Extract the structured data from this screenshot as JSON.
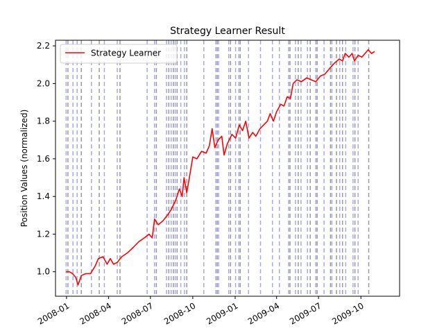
{
  "chart_data": {
    "type": "line",
    "title": "Strategy Learner Result",
    "xlabel": "",
    "ylabel": "Position Values (normalized)",
    "xlim": [
      "2007-12-08",
      "2009-12-24"
    ],
    "ylim": [
      0.87,
      2.23
    ],
    "grid": false,
    "legend_position": "upper-left",
    "x_ticks": [
      "2008-01",
      "2008-04",
      "2008-07",
      "2008-10",
      "2009-01",
      "2009-04",
      "2009-07",
      "2009-10"
    ],
    "x_tick_dates": [
      "2008-01-01",
      "2008-04-01",
      "2008-07-01",
      "2008-10-01",
      "2009-01-01",
      "2009-04-01",
      "2009-07-01",
      "2009-10-01"
    ],
    "y_ticks": [
      "1.0",
      "1.2",
      "1.4",
      "1.6",
      "1.8",
      "2.0",
      "2.2"
    ],
    "y_tick_values": [
      1.0,
      1.2,
      1.4,
      1.6,
      1.8,
      2.0,
      2.2
    ],
    "series": [
      {
        "name": "Strategy Learner",
        "color": "#ff0000",
        "points": [
          [
            "2007-12-31",
            1.0
          ],
          [
            "2008-01-07",
            1.0
          ],
          [
            "2008-01-14",
            0.99
          ],
          [
            "2008-01-21",
            0.97
          ],
          [
            "2008-01-26",
            0.93
          ],
          [
            "2008-02-02",
            0.98
          ],
          [
            "2008-02-12",
            0.99
          ],
          [
            "2008-02-22",
            0.99
          ],
          [
            "2008-03-03",
            1.03
          ],
          [
            "2008-03-10",
            1.07
          ],
          [
            "2008-03-20",
            1.08
          ],
          [
            "2008-03-29",
            1.04
          ],
          [
            "2008-04-05",
            1.07
          ],
          [
            "2008-04-12",
            1.04
          ],
          [
            "2008-04-20",
            1.05
          ],
          [
            "2008-04-30",
            1.08
          ],
          [
            "2008-05-12",
            1.1
          ],
          [
            "2008-05-25",
            1.13
          ],
          [
            "2008-06-06",
            1.16
          ],
          [
            "2008-06-18",
            1.18
          ],
          [
            "2008-06-28",
            1.2
          ],
          [
            "2008-07-05",
            1.18
          ],
          [
            "2008-07-10",
            1.28
          ],
          [
            "2008-07-18",
            1.25
          ],
          [
            "2008-07-28",
            1.27
          ],
          [
            "2008-08-07",
            1.3
          ],
          [
            "2008-08-15",
            1.33
          ],
          [
            "2008-08-25",
            1.38
          ],
          [
            "2008-09-02",
            1.44
          ],
          [
            "2008-09-08",
            1.4
          ],
          [
            "2008-09-12",
            1.5
          ],
          [
            "2008-09-18",
            1.42
          ],
          [
            "2008-09-25",
            1.52
          ],
          [
            "2008-10-01",
            1.61
          ],
          [
            "2008-10-10",
            1.6
          ],
          [
            "2008-10-20",
            1.64
          ],
          [
            "2008-10-30",
            1.63
          ],
          [
            "2008-11-06",
            1.67
          ],
          [
            "2008-11-12",
            1.76
          ],
          [
            "2008-11-18",
            1.66
          ],
          [
            "2008-11-25",
            1.7
          ],
          [
            "2008-12-03",
            1.72
          ],
          [
            "2008-12-08",
            1.62
          ],
          [
            "2008-12-15",
            1.68
          ],
          [
            "2008-12-25",
            1.73
          ],
          [
            "2009-01-02",
            1.71
          ],
          [
            "2009-01-10",
            1.78
          ],
          [
            "2009-01-17",
            1.75
          ],
          [
            "2009-01-24",
            1.8
          ],
          [
            "2009-01-31",
            1.71
          ],
          [
            "2009-02-08",
            1.74
          ],
          [
            "2009-02-15",
            1.72
          ],
          [
            "2009-02-24",
            1.76
          ],
          [
            "2009-03-04",
            1.78
          ],
          [
            "2009-03-12",
            1.8
          ],
          [
            "2009-03-18",
            1.84
          ],
          [
            "2009-03-25",
            1.8
          ],
          [
            "2009-04-01",
            1.85
          ],
          [
            "2009-04-10",
            1.89
          ],
          [
            "2009-04-17",
            1.88
          ],
          [
            "2009-04-24",
            1.93
          ],
          [
            "2009-05-01",
            1.92
          ],
          [
            "2009-05-07",
            2.0
          ],
          [
            "2009-05-15",
            2.02
          ],
          [
            "2009-05-25",
            2.01
          ],
          [
            "2009-06-05",
            2.03
          ],
          [
            "2009-06-15",
            2.02
          ],
          [
            "2009-06-25",
            2.01
          ],
          [
            "2009-07-05",
            2.04
          ],
          [
            "2009-07-15",
            2.05
          ],
          [
            "2009-07-25",
            2.08
          ],
          [
            "2009-08-05",
            2.11
          ],
          [
            "2009-08-15",
            2.13
          ],
          [
            "2009-08-22",
            2.12
          ],
          [
            "2009-08-28",
            2.16
          ],
          [
            "2009-09-05",
            2.14
          ],
          [
            "2009-09-12",
            2.16
          ],
          [
            "2009-09-17",
            2.12
          ],
          [
            "2009-09-25",
            2.15
          ],
          [
            "2009-10-03",
            2.14
          ],
          [
            "2009-10-10",
            2.16
          ],
          [
            "2009-10-17",
            2.18
          ],
          [
            "2009-10-24",
            2.16
          ],
          [
            "2009-10-31",
            2.17
          ]
        ]
      }
    ],
    "vlines": [
      {
        "color": "#0000cc",
        "dates": [
          "2007-12-31",
          "2008-01-15",
          "2008-01-24",
          "2008-02-24",
          "2008-03-23",
          "2008-04-20",
          "2008-06-24",
          "2008-07-10",
          "2008-08-05",
          "2008-08-15",
          "2008-08-24",
          "2008-09-05",
          "2008-09-13",
          "2008-10-25",
          "2008-11-20",
          "2008-11-26",
          "2008-12-18",
          "2009-01-02",
          "2009-01-09",
          "2009-01-30",
          "2009-02-25",
          "2009-03-23",
          "2009-04-07",
          "2009-04-27",
          "2009-05-12",
          "2009-05-24",
          "2009-06-07",
          "2009-06-25",
          "2009-07-13",
          "2009-07-30",
          "2009-08-16",
          "2009-08-29",
          "2009-09-14",
          "2009-09-25"
        ]
      },
      {
        "color": "#000000",
        "dates": [
          "2008-01-04",
          "2008-02-02",
          "2008-03-12",
          "2008-04-26",
          "2008-07-14",
          "2008-08-10",
          "2008-08-20",
          "2008-08-28",
          "2008-09-18",
          "2008-11-23",
          "2008-12-22",
          "2009-01-12",
          "2009-04-30",
          "2009-05-18",
          "2009-06-13",
          "2009-06-28",
          "2009-07-27",
          "2009-08-09",
          "2009-08-22",
          "2009-09-18",
          "2009-10-18"
        ]
      }
    ]
  }
}
